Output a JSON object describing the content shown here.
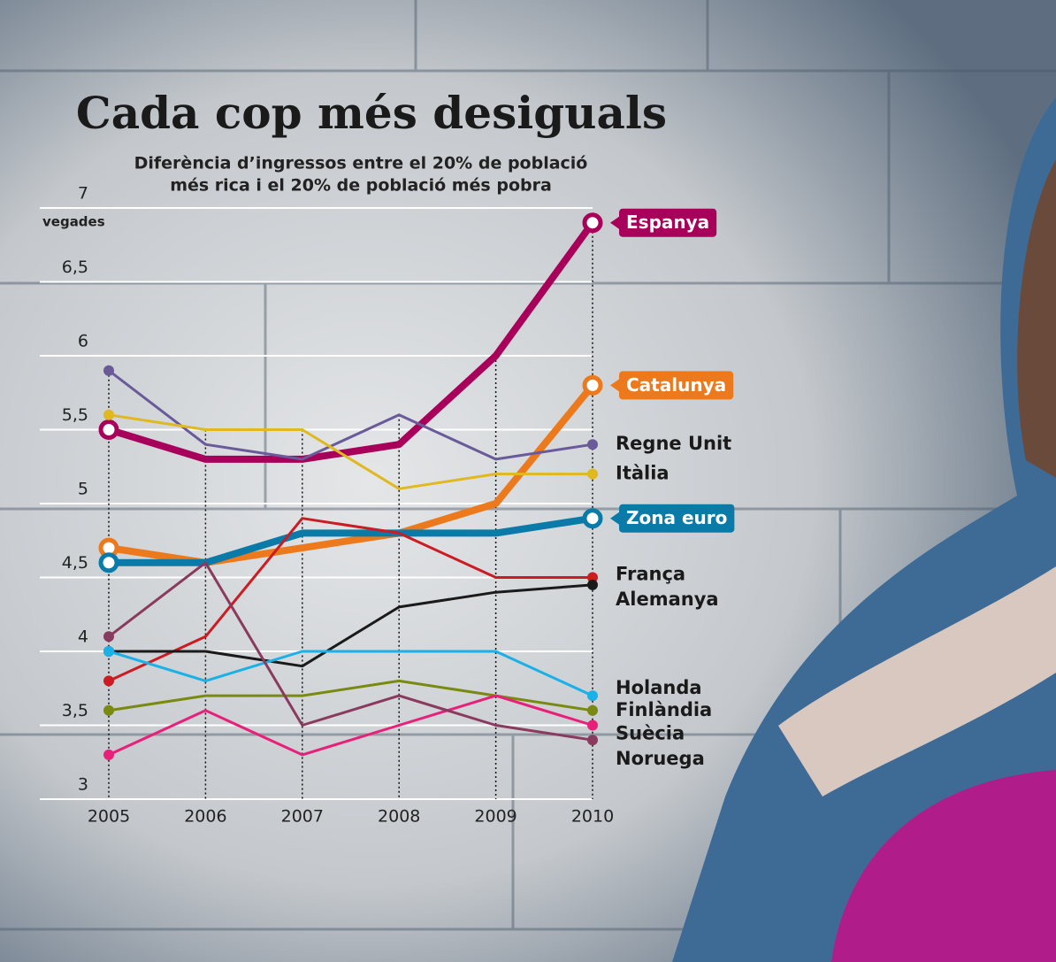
{
  "chart_data": {
    "type": "line",
    "title": "Cada cop més desiguals",
    "subtitle": [
      "Diferència d’ingressos entre el 20% de població",
      "més rica i el 20% de població més pobra"
    ],
    "y_label": "vegades",
    "x": [
      2005,
      2006,
      2007,
      2008,
      2009,
      2010
    ],
    "xlim": [
      2005,
      2010
    ],
    "xticks": [
      2005,
      2006,
      2007,
      2008,
      2009,
      2010
    ],
    "ylim": [
      3,
      7
    ],
    "yticks": [
      3,
      {
        "value": 3.5,
        "label": "3,5"
      },
      4,
      {
        "value": 4.5,
        "label": "4,5"
      },
      5,
      {
        "value": 5.5,
        "label": "5,5"
      },
      6,
      {
        "value": 6.5,
        "label": "6,5"
      },
      7
    ],
    "grid": true,
    "series": [
      {
        "name": "Espanya",
        "color": "#a8005a",
        "highlight": true,
        "values": [
          5.5,
          5.3,
          5.3,
          5.4,
          6.0,
          6.9
        ]
      },
      {
        "name": "Catalunya",
        "color": "#ec7a1c",
        "highlight": true,
        "values": [
          4.7,
          4.6,
          4.7,
          4.8,
          5.0,
          5.8
        ]
      },
      {
        "name": "Regne Unit",
        "color": "#6a5a9a",
        "values": [
          5.9,
          5.4,
          5.3,
          5.6,
          5.3,
          5.4
        ]
      },
      {
        "name": "Itàlia",
        "color": "#e0b820",
        "values": [
          5.6,
          5.5,
          5.5,
          5.1,
          5.2,
          5.2
        ]
      },
      {
        "name": "Zona euro",
        "color": "#0a7aa8",
        "highlight": true,
        "values": [
          4.6,
          4.6,
          4.8,
          4.8,
          4.8,
          4.9
        ]
      },
      {
        "name": "França",
        "color": "#cc1b22",
        "values": [
          3.8,
          4.1,
          4.9,
          4.8,
          4.5,
          4.5
        ]
      },
      {
        "name": "Alemanya",
        "color": "#1a1a1a",
        "values": [
          4.0,
          4.0,
          3.9,
          4.3,
          4.4,
          4.45
        ]
      },
      {
        "name": "Holanda",
        "color": "#1ab0e8",
        "values": [
          4.0,
          3.8,
          4.0,
          4.0,
          4.0,
          3.7
        ]
      },
      {
        "name": "Finlàndia",
        "color": "#7a8a10",
        "values": [
          3.6,
          3.7,
          3.7,
          3.8,
          3.7,
          3.6
        ]
      },
      {
        "name": "Suècia",
        "color": "#e8207a",
        "values": [
          3.3,
          3.6,
          3.3,
          3.5,
          3.7,
          3.5
        ]
      },
      {
        "name": "Noruega",
        "color": "#8a3a5e",
        "values": [
          4.1,
          4.6,
          3.5,
          3.7,
          3.5,
          3.4
        ]
      }
    ]
  }
}
